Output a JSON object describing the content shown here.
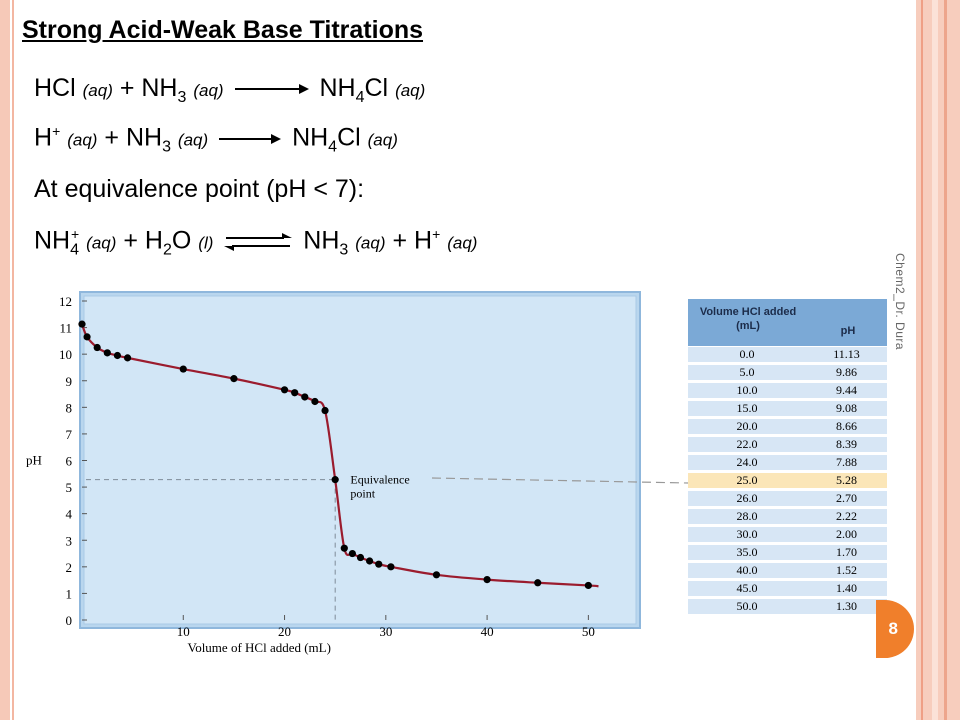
{
  "title": "Strong Acid-Weak Base Titrations",
  "equations": {
    "eq1": {
      "a": "HCl",
      "a_state": "(aq)",
      "plus": "+",
      "b": "NH",
      "b_sub": "3",
      "b_state": "(aq)",
      "p": "NH",
      "p_sub": "4",
      "p2": "Cl",
      "p_state": "(aq)"
    },
    "eq2": {
      "a": "H",
      "a_sup": "+",
      "a_state": "(aq)",
      "plus": "+",
      "b": "NH",
      "b_sub": "3",
      "b_state": "(aq)",
      "p": "NH",
      "p_sub": "4",
      "p2": "Cl",
      "p_state": "(aq)"
    },
    "equivalence_text": "At equivalence point (pH < 7):",
    "eq3": {
      "a": "NH",
      "a_sub": "4",
      "a_sup": "+",
      "a_state": "(aq)",
      "plus": "+",
      "b": "H",
      "b_sub": "2",
      "b2": "O",
      "b_state": "(l)",
      "p": "NH",
      "p_sub": "3",
      "p_state": "(aq)",
      "plus2": "+",
      "q": "H",
      "q_sup": "+",
      "q_state": "(aq)"
    }
  },
  "side_label": "Chem2_Dr. Dura",
  "page_number": "8",
  "colors": {
    "curve": "#9b1c2e",
    "plot_bg": "#d2e6f6",
    "table_header": "#7ba9d6",
    "highlight_row": "#fbe6b8",
    "accent_badge": "#f07f2b"
  },
  "table": {
    "col1_header": "Volume HCl added (mL)",
    "col2_header": "pH",
    "highlight_index": 7,
    "rows": [
      [
        "0.0",
        "11.13"
      ],
      [
        "5.0",
        "9.86"
      ],
      [
        "10.0",
        "9.44"
      ],
      [
        "15.0",
        "9.08"
      ],
      [
        "20.0",
        "8.66"
      ],
      [
        "22.0",
        "8.39"
      ],
      [
        "24.0",
        "7.88"
      ],
      [
        "25.0",
        "5.28"
      ],
      [
        "26.0",
        "2.70"
      ],
      [
        "28.0",
        "2.22"
      ],
      [
        "30.0",
        "2.00"
      ],
      [
        "35.0",
        "1.70"
      ],
      [
        "40.0",
        "1.52"
      ],
      [
        "45.0",
        "1.40"
      ],
      [
        "50.0",
        "1.30"
      ]
    ]
  },
  "chart_data": {
    "type": "line",
    "title": "",
    "xlabel": "Volume of HCl added (mL)",
    "ylabel": "pH",
    "xlim": [
      0,
      55
    ],
    "ylim": [
      0,
      12
    ],
    "x_ticks": [
      10,
      20,
      30,
      40,
      50
    ],
    "y_ticks": [
      0,
      1,
      2,
      3,
      4,
      5,
      6,
      7,
      8,
      9,
      10,
      11,
      12
    ],
    "annotation": "Equivalence point",
    "equivalence_x": 25.0,
    "equivalence_y": 5.28,
    "points": {
      "x": [
        0.0,
        0.5,
        1.5,
        2.5,
        3.5,
        4.5,
        10.0,
        15.0,
        20.0,
        21.0,
        22.0,
        23.0,
        24.0,
        25.0,
        25.9,
        26.7,
        27.5,
        28.4,
        29.3,
        30.5,
        35.0,
        40.0,
        45.0,
        50.0
      ],
      "y": [
        11.13,
        10.65,
        10.25,
        10.05,
        9.95,
        9.86,
        9.44,
        9.08,
        8.66,
        8.55,
        8.39,
        8.22,
        7.88,
        5.28,
        2.7,
        2.5,
        2.35,
        2.22,
        2.1,
        2.0,
        1.7,
        1.52,
        1.4,
        1.3
      ]
    }
  }
}
